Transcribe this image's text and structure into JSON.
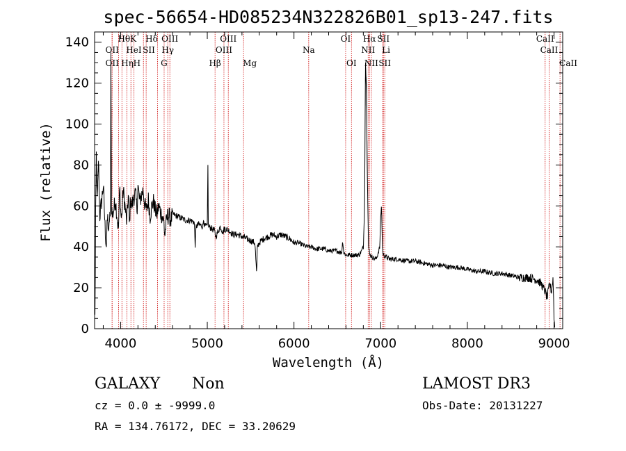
{
  "chart_data": {
    "type": "line",
    "title": "spec-56654-HD085234N322826B01_sp13-247.fits",
    "xlabel": "Wavelength (Å)",
    "ylabel": "Flux (relative)",
    "xlim": [
      3700,
      9100
    ],
    "ylim": [
      0,
      145
    ],
    "xticks": [
      4000,
      5000,
      6000,
      7000,
      8000,
      9000
    ],
    "yticks": [
      0,
      20,
      40,
      60,
      80,
      100,
      120,
      140
    ],
    "x_tick_labels": [
      "4000",
      "5000",
      "6000",
      "7000",
      "8000",
      "9000"
    ],
    "y_tick_labels": [
      "0",
      "20",
      "40",
      "60",
      "80",
      "100",
      "120",
      "140"
    ],
    "series": [
      {
        "name": "spectrum",
        "color": "#000000",
        "anchors": [
          [
            3700,
            35
          ],
          [
            3705,
            2
          ],
          [
            3712,
            55
          ],
          [
            3720,
            85
          ],
          [
            3730,
            60
          ],
          [
            3745,
            82
          ],
          [
            3760,
            55
          ],
          [
            3780,
            62
          ],
          [
            3800,
            70
          ],
          [
            3820,
            50
          ],
          [
            3835,
            40
          ],
          [
            3850,
            55
          ],
          [
            3865,
            45
          ],
          [
            3875,
            58
          ],
          [
            3883,
            48
          ],
          [
            3888,
            135
          ],
          [
            3895,
            60
          ],
          [
            3905,
            55
          ],
          [
            3920,
            58
          ],
          [
            3940,
            63
          ],
          [
            3960,
            55
          ],
          [
            3975,
            48
          ],
          [
            3990,
            70
          ],
          [
            4000,
            58
          ],
          [
            4010,
            53
          ],
          [
            4030,
            68
          ],
          [
            4050,
            60
          ],
          [
            4070,
            52
          ],
          [
            4090,
            66
          ],
          [
            4101,
            50
          ],
          [
            4115,
            63
          ],
          [
            4130,
            60
          ],
          [
            4150,
            64
          ],
          [
            4170,
            66
          ],
          [
            4190,
            58
          ],
          [
            4200,
            70
          ],
          [
            4220,
            62
          ],
          [
            4240,
            65
          ],
          [
            4260,
            68
          ],
          [
            4280,
            60
          ],
          [
            4300,
            58
          ],
          [
            4320,
            63
          ],
          [
            4340,
            55
          ],
          [
            4360,
            60
          ],
          [
            4380,
            62
          ],
          [
            4400,
            58
          ],
          [
            4420,
            56
          ],
          [
            4440,
            60
          ],
          [
            4460,
            57
          ],
          [
            4480,
            55
          ],
          [
            4500,
            52
          ],
          [
            4510,
            45
          ],
          [
            4520,
            50
          ],
          [
            4540,
            55
          ],
          [
            4560,
            55
          ],
          [
            4580,
            53
          ],
          [
            4600,
            56
          ],
          [
            4650,
            55
          ],
          [
            4700,
            54
          ],
          [
            4750,
            53
          ],
          [
            4800,
            53
          ],
          [
            4850,
            52
          ],
          [
            4861,
            40
          ],
          [
            4870,
            50
          ],
          [
            4900,
            51
          ],
          [
            4950,
            50
          ],
          [
            4959,
            55
          ],
          [
            4965,
            50
          ],
          [
            5000,
            50
          ],
          [
            5007,
            80
          ],
          [
            5012,
            50
          ],
          [
            5050,
            49
          ],
          [
            5080,
            48
          ],
          [
            5100,
            45
          ],
          [
            5120,
            47
          ],
          [
            5150,
            50
          ],
          [
            5180,
            47
          ],
          [
            5200,
            49
          ],
          [
            5250,
            48
          ],
          [
            5300,
            46
          ],
          [
            5350,
            46
          ],
          [
            5400,
            45
          ],
          [
            5450,
            44
          ],
          [
            5500,
            43
          ],
          [
            5550,
            42
          ],
          [
            5570,
            26
          ],
          [
            5577,
            40
          ],
          [
            5600,
            42
          ],
          [
            5650,
            44
          ],
          [
            5700,
            45
          ],
          [
            5750,
            46
          ],
          [
            5800,
            45
          ],
          [
            5850,
            46
          ],
          [
            5900,
            45
          ],
          [
            5950,
            44
          ],
          [
            6000,
            42
          ],
          [
            6050,
            42
          ],
          [
            6100,
            41
          ],
          [
            6150,
            40
          ],
          [
            6200,
            40
          ],
          [
            6250,
            39
          ],
          [
            6300,
            39
          ],
          [
            6350,
            39
          ],
          [
            6400,
            38
          ],
          [
            6450,
            38
          ],
          [
            6500,
            38
          ],
          [
            6550,
            37
          ],
          [
            6563,
            43
          ],
          [
            6575,
            37
          ],
          [
            6600,
            36
          ],
          [
            6650,
            36
          ],
          [
            6700,
            36
          ],
          [
            6750,
            36
          ],
          [
            6780,
            38
          ],
          [
            6800,
            40
          ],
          [
            6815,
            60
          ],
          [
            6825,
            130
          ],
          [
            6835,
            120
          ],
          [
            6845,
            80
          ],
          [
            6860,
            40
          ],
          [
            6880,
            36
          ],
          [
            6900,
            35
          ],
          [
            6950,
            34
          ],
          [
            6990,
            40
          ],
          [
            7000,
            55
          ],
          [
            7010,
            60
          ],
          [
            7020,
            40
          ],
          [
            7030,
            36
          ],
          [
            7100,
            34
          ],
          [
            7200,
            34
          ],
          [
            7300,
            33
          ],
          [
            7400,
            33
          ],
          [
            7500,
            32
          ],
          [
            7600,
            31
          ],
          [
            7700,
            31
          ],
          [
            7800,
            30
          ],
          [
            7900,
            30
          ],
          [
            8000,
            29
          ],
          [
            8100,
            28
          ],
          [
            8200,
            28
          ],
          [
            8300,
            27
          ],
          [
            8400,
            27
          ],
          [
            8500,
            26
          ],
          [
            8600,
            25
          ],
          [
            8700,
            25
          ],
          [
            8800,
            24
          ],
          [
            8850,
            22
          ],
          [
            8900,
            18
          ],
          [
            8920,
            15
          ],
          [
            8950,
            22
          ],
          [
            8970,
            18
          ],
          [
            8990,
            25
          ],
          [
            9000,
            5
          ],
          [
            9010,
            0
          ]
        ]
      }
    ],
    "lines": [
      {
        "wl": 3727,
        "label": "OII",
        "row": 2,
        "ha": "middle"
      },
      {
        "wl": 3727,
        "label": "OII",
        "row": 3,
        "ha": "middle"
      },
      {
        "wl": 3798,
        "label": "Hθ",
        "row": 1,
        "ha": "start"
      },
      {
        "wl": 3889,
        "label": "HeI",
        "row": 2,
        "ha": "start"
      },
      {
        "wl": 3835,
        "label": "Hη",
        "row": 3,
        "ha": "start"
      },
      {
        "wl": 3934,
        "label": "K",
        "row": 1,
        "ha": "start"
      },
      {
        "wl": 3968,
        "label": "H",
        "row": 3,
        "ha": "start"
      },
      {
        "wl": 4072,
        "label": "SII",
        "row": 2,
        "ha": "start"
      },
      {
        "wl": 4102,
        "label": "Hδ",
        "row": 1,
        "ha": "start"
      },
      {
        "wl": 4227,
        "label": "",
        "row": 0,
        "ha": "middle"
      },
      {
        "wl": 4300,
        "label": "G",
        "row": 3,
        "ha": "middle"
      },
      {
        "wl": 4340,
        "label": "Hγ",
        "row": 2,
        "ha": "middle"
      },
      {
        "wl": 4363,
        "label": "OIII",
        "row": 1,
        "ha": "middle"
      },
      {
        "wl": 4861,
        "label": "Hβ",
        "row": 3,
        "ha": "middle"
      },
      {
        "wl": 4959,
        "label": "OIII",
        "row": 2,
        "ha": "middle"
      },
      {
        "wl": 5007,
        "label": "OIII",
        "row": 1,
        "ha": "middle"
      },
      {
        "wl": 5175,
        "label": "Mg",
        "row": 3,
        "ha": "start"
      },
      {
        "wl": 5893,
        "label": "Na",
        "row": 2,
        "ha": "middle"
      },
      {
        "wl": 6300,
        "label": "OI",
        "row": 1,
        "ha": "middle"
      },
      {
        "wl": 6364,
        "label": "OI",
        "row": 3,
        "ha": "middle"
      },
      {
        "wl": 6548,
        "label": "NII",
        "row": 2,
        "ha": "middle"
      },
      {
        "wl": 6563,
        "label": "Hα",
        "row": 1,
        "ha": "middle"
      },
      {
        "wl": 6583,
        "label": "NII",
        "row": 3,
        "ha": "middle"
      },
      {
        "wl": 6708,
        "label": "Li",
        "row": 2,
        "ha": "start"
      },
      {
        "wl": 6716,
        "label": "SII",
        "row": 1,
        "ha": "middle"
      },
      {
        "wl": 6731,
        "label": "SII",
        "row": 3,
        "ha": "middle"
      },
      {
        "wl": 8498,
        "label": "CaII",
        "row": 1,
        "ha": "middle"
      },
      {
        "wl": 8542,
        "label": "CaII",
        "row": 2,
        "ha": "middle"
      },
      {
        "wl": 8662,
        "label": "CaII",
        "row": 3,
        "ha": "start"
      }
    ],
    "redshift_applied": 0.047,
    "colors": {
      "line_marker": "#cc0000",
      "spectrum": "#000000",
      "axis": "#000000"
    }
  },
  "info": {
    "class": "GALAXY",
    "subclass": "Non",
    "cz": "cz = 0.0 ± -9999.0",
    "radec": "RA = 134.76172, DEC =  33.20629",
    "survey": "LAMOST DR3",
    "obsdate": "Obs-Date: 20131227"
  }
}
